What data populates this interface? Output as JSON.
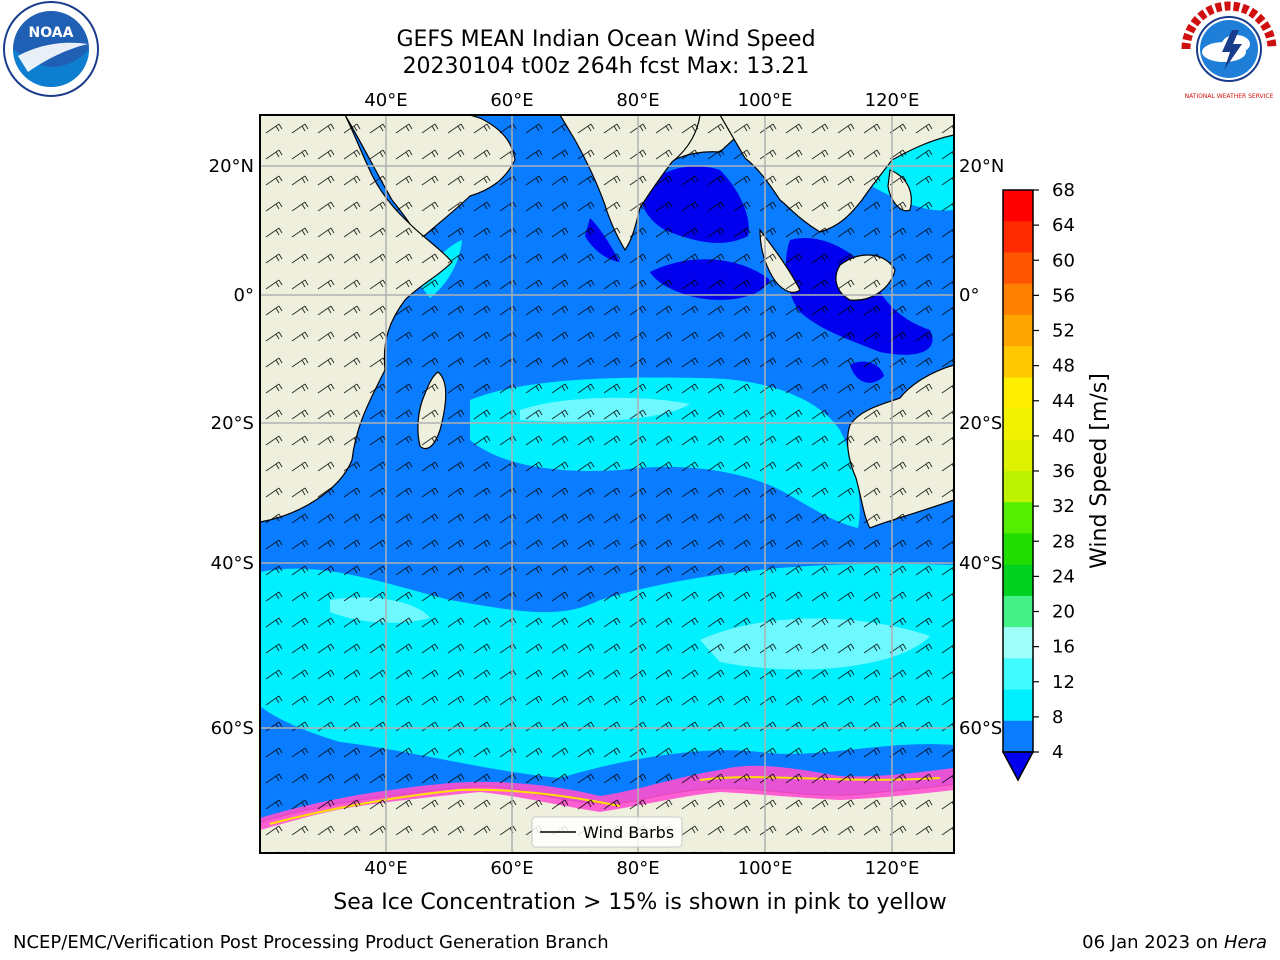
{
  "title": {
    "line1": "GEFS MEAN Indian Ocean Wind Speed",
    "line2": "20230104 t00z 264h fcst   Max: 13.21"
  },
  "map": {
    "lon_ticks_top": [
      "40°E",
      "60°E",
      "80°E",
      "100°E",
      "120°E"
    ],
    "lon_ticks_bottom": [
      "40°E",
      "60°E",
      "80°E",
      "100°E",
      "120°E"
    ],
    "lat_ticks_left": [
      "20°N",
      "0°",
      "20°S",
      "40°S",
      "60°S"
    ],
    "lat_ticks_right": [
      "20°N",
      "0°",
      "20°S",
      "40°S",
      "60°S"
    ],
    "legend_label": "Wind Barbs",
    "colors": {
      "land": "#efefde",
      "band_4_8": "#0a7cff",
      "band_below_4": "#0000ee",
      "band_8_12": "#00f0ff",
      "band_12_16": "#6ef8ff",
      "sea_ice_pink": "#ff4fd0",
      "sea_ice_yellow": "#ffe000"
    }
  },
  "colorbar": {
    "label": "Wind Speed [m/s]",
    "ticks": [
      "68",
      "64",
      "60",
      "56",
      "52",
      "48",
      "44",
      "40",
      "36",
      "32",
      "28",
      "24",
      "20",
      "16",
      "12",
      "8",
      "4"
    ],
    "colors": [
      "#ff0000",
      "#ff2a00",
      "#ff5500",
      "#ff8000",
      "#ffa500",
      "#ffc800",
      "#ffee00",
      "#f2f200",
      "#ddf200",
      "#bdf200",
      "#55ee00",
      "#22dd00",
      "#00d020",
      "#44f088",
      "#a0fff8",
      "#40fcff",
      "#00f0ff",
      "#0a7cff"
    ],
    "extend_color": "#0000ee"
  },
  "logos": {
    "noaa": "NOAA",
    "nws": "NATIONAL WEATHER SERVICE"
  },
  "footer": {
    "note": "Sea Ice Concentration > 15% is shown in pink to yellow",
    "left": "NCEP/EMC/Verification Post Processing Product Generation Branch",
    "right_date": "06 Jan 2023 on ",
    "right_host": "Hera"
  }
}
